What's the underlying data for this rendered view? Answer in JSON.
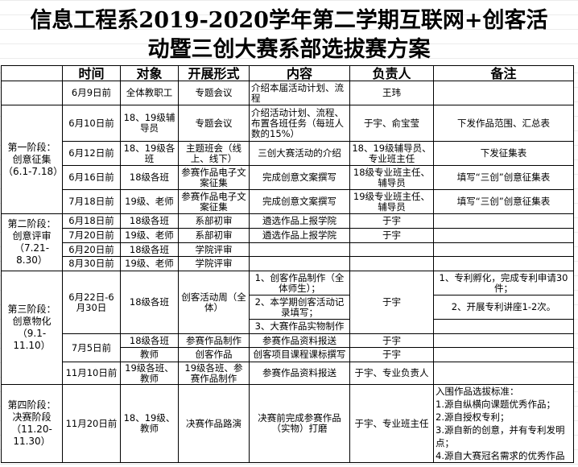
{
  "title": {
    "line1": "信息工程系2019-2020学年第二学期互联网+创客活",
    "line2": "动暨三创大赛系部选拔赛方案"
  },
  "headers": [
    "",
    "时间",
    "对象",
    "开展形式",
    "内容",
    "负责人",
    "备注"
  ],
  "rows": [
    [
      "",
      "6月9日前",
      "全体教职工",
      "专题会议",
      "介绍本届活动计划、流程",
      "王玮",
      ""
    ],
    [
      "第一阶段：创意征集（6.1-7.18）",
      "6月10日前",
      "18、19级辅导员",
      "专题会议",
      "介绍活动计划、流程、布置各班任务（每班人数的15%）",
      "于宇、俞宝莹",
      "下发作品范围、汇总表"
    ],
    [
      "6月12日前",
      "18、19级各班",
      "主题班会（线上、线下）",
      "三创大赛活动的介绍",
      "18、19级辅导员、专业班主任",
      "下发征集表"
    ],
    [
      "6月16日前",
      "18级各班",
      "参赛作品电子文案征集",
      "完成创意文案撰写",
      "18级专业班主任、辅导员",
      "填写“三创”创意征集表"
    ],
    [
      "7月18日前",
      "19级、老师",
      "参赛作品电子文案征集",
      "完成创意文案撰写",
      "19级专业班主任、辅导员",
      "填写“三创”创意征集表"
    ],
    [
      "第二阶段：创意评审（7.21-8.30）",
      "6月18日前",
      "18级各班",
      "系部初审",
      "遴选作品上报学院",
      "于宇",
      ""
    ],
    [
      "7月20日前",
      "19级、老师",
      "系部初审",
      "遴选作品上报学院",
      "于宇",
      ""
    ],
    [
      "6月20日前",
      "18级各班",
      "学院评审",
      "",
      "",
      ""
    ],
    [
      "8月30日前",
      "19级、老师",
      "学院评审",
      "",
      "",
      ""
    ],
    [
      "第三阶段：创意物化（9.1-11.10）",
      "6月22日-6月30日",
      "18级各班",
      "创客活动周（全体）",
      "1、创客作品制作（全体师生）；",
      "于宇",
      "1、专利孵化，完成专利申请30件；"
    ],
    [
      "2、本学期创客活动记录填写；",
      "2、开展专利讲座1-2次。"
    ],
    [
      "3、大赛作品实物制作",
      ""
    ],
    [
      "7月5日前",
      "18级各班",
      "参赛作品制作",
      "参赛作品资料报送",
      "于宇",
      ""
    ],
    [
      "教师",
      "创客作品",
      "创客项目课程课标撰写",
      "于宇",
      ""
    ],
    [
      "11月10日前",
      "19级各班、教师",
      "19级各班、参赛作品制作",
      "参赛作品资料报送",
      "于宇、专业负责人",
      ""
    ],
    [
      "第四阶段：决赛阶段（11.20-11.30）",
      "11月20日前",
      "18、19级、教师",
      "决赛作品路演",
      "决赛前完成参赛作品（实物）打磨",
      "于宇、专业班主任"
    ]
  ],
  "final_remark": [
    "入围作品选拔标准：",
    "1.源自纵横向课题优秀作品；",
    "2.源自授权专利；",
    "3.源自新的创意，并有专利发明点；",
    "4.源自大赛冠名需求的优秀作品"
  ]
}
